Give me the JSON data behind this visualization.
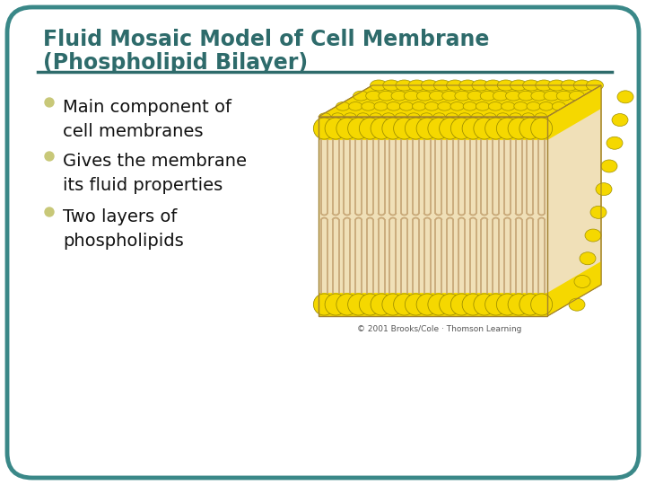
{
  "title_line1": "Fluid Mosaic Model of Cell Membrane",
  "title_line2": "(Phospholipid Bilayer)",
  "title_color": "#2E6B6B",
  "title_fontsize": 17,
  "bg_color": "#FFFFFF",
  "border_color": "#3A8888",
  "bullet_color": "#C8C878",
  "text_color": "#111111",
  "bullets": [
    "Main component of\ncell membranes",
    "Gives the membrane\nits fluid properties",
    "Two layers of\nphospholipids"
  ],
  "bullet_fontsize": 14,
  "separator_color": "#2E6B6B",
  "head_color": "#F5D800",
  "tail_color_light": "#F0E0B8",
  "tail_color_dark": "#C8A878",
  "copyright": "© 2001 Brooks/Cole · Thomson Learning"
}
